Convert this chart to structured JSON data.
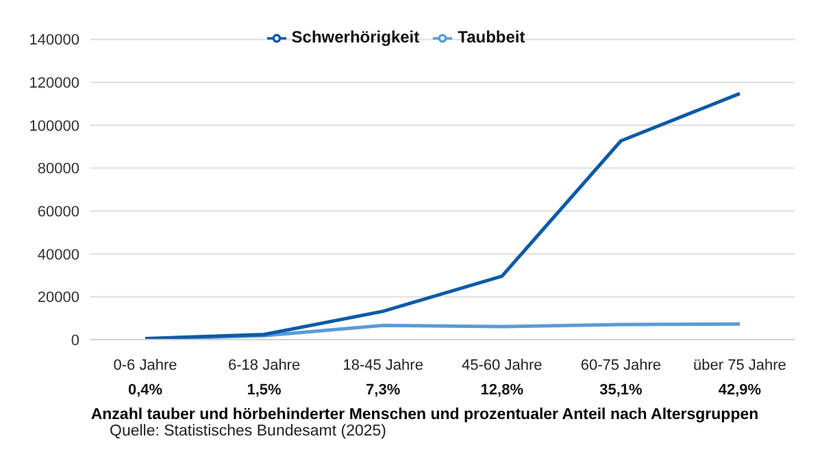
{
  "chart_data": {
    "type": "line",
    "title": "Anzahl tauber und hörbehinderter Menschen und prozentualer Anteil nach Altersgruppen",
    "categories": [
      "0-6 Jahre",
      "6-18 Jahre",
      "18-45 Jahre",
      "45-60 Jahre",
      "60-75 Jahre",
      "über 75 Jahre"
    ],
    "series": [
      {
        "name": "Taubbeit",
        "color": "#5b9bd5",
        "values": [
          300,
          1800,
          6600,
          6100,
          7000,
          7300
        ]
      },
      {
        "name": "Schwerhörigkeit",
        "color": "#0b5aa8",
        "values": [
          500,
          2400,
          13200,
          29600,
          92700,
          114800
        ]
      }
    ],
    "ylim": [
      0,
      140000
    ],
    "yticks": [
      0,
      20000,
      40000,
      60000,
      80000,
      100000,
      120000,
      140000
    ],
    "grid": "y",
    "legend": "top",
    "marker": "none",
    "line_style": "solid",
    "annotations": [
      "0,4%",
      "1,5%",
      "7,3%",
      "12,8%",
      "35,1%",
      "42,9%",
      "Quelle: Statistisches Bundesamt (2025)"
    ]
  }
}
